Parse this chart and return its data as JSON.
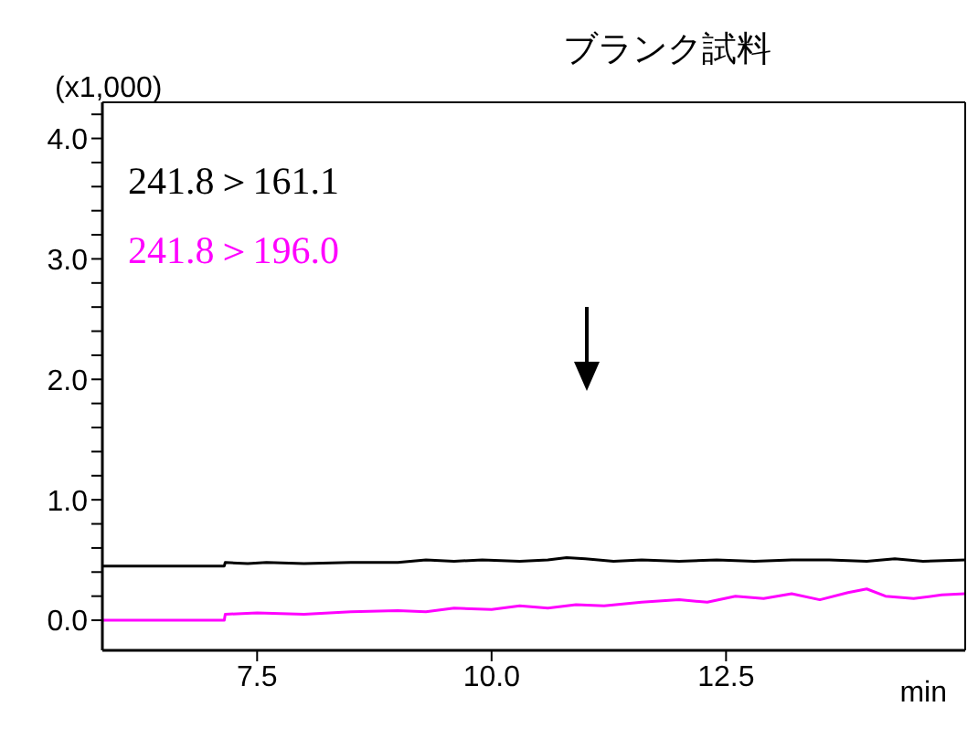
{
  "chart_data": {
    "type": "line",
    "title": "ブランク試料",
    "xlabel": "min",
    "ylabel": "(x1,000)",
    "xlim": [
      5.85,
      15.05
    ],
    "xticks": [
      7.5,
      {
        "value": 10,
        "label": "10.0"
      },
      12.5
    ],
    "ylim": [
      -0.25,
      4.3
    ],
    "yticks": [
      {
        "value": 0,
        "label": "0.0"
      },
      {
        "value": 0.2,
        "label": null
      },
      {
        "value": 0.4,
        "label": null
      },
      {
        "value": 0.6,
        "label": null
      },
      {
        "value": 0.8,
        "label": null
      },
      {
        "value": 1,
        "label": "1.0"
      },
      {
        "value": 1.2,
        "label": null
      },
      {
        "value": 1.4,
        "label": null
      },
      {
        "value": 1.6,
        "label": null
      },
      {
        "value": 1.8,
        "label": null
      },
      {
        "value": 2,
        "label": "2.0"
      },
      {
        "value": 2.2,
        "label": null
      },
      {
        "value": 2.4,
        "label": null
      },
      {
        "value": 2.6,
        "label": null
      },
      {
        "value": 2.8,
        "label": null
      },
      {
        "value": 3,
        "label": "3.0"
      },
      {
        "value": 3.2,
        "label": null
      },
      {
        "value": 3.4,
        "label": null
      },
      {
        "value": 3.6,
        "label": null
      },
      {
        "value": 3.8,
        "label": null
      },
      {
        "value": 4,
        "label": "4.0"
      },
      {
        "value": 4.2,
        "label": null
      }
    ],
    "grid": false,
    "legend": "top left",
    "marker": "none",
    "line_style": "solid",
    "series": [
      {
        "name": "241.8＞161.1",
        "color": "#000000",
        "x": [
          5.85,
          7.15,
          7.16,
          7.4,
          7.6,
          8.0,
          8.5,
          9.0,
          9.3,
          9.6,
          9.9,
          10.3,
          10.6,
          10.8,
          11.0,
          11.3,
          11.6,
          12.0,
          12.4,
          12.8,
          13.2,
          13.6,
          14.0,
          14.3,
          14.6,
          15.05
        ],
        "values": [
          0.45,
          0.45,
          0.48,
          0.47,
          0.48,
          0.47,
          0.48,
          0.48,
          0.5,
          0.49,
          0.5,
          0.49,
          0.5,
          0.52,
          0.51,
          0.49,
          0.5,
          0.49,
          0.5,
          0.49,
          0.5,
          0.5,
          0.49,
          0.51,
          0.49,
          0.5
        ]
      },
      {
        "name": "241.8＞196.0",
        "color": "#ff00ff",
        "x": [
          5.85,
          7.15,
          7.16,
          7.5,
          8.0,
          8.5,
          9.0,
          9.3,
          9.6,
          10.0,
          10.3,
          10.6,
          10.9,
          11.2,
          11.6,
          12.0,
          12.3,
          12.6,
          12.9,
          13.2,
          13.5,
          13.8,
          14.0,
          14.2,
          14.5,
          14.8,
          15.05
        ],
        "values": [
          0,
          0,
          0.05,
          0.06,
          0.05,
          0.07,
          0.08,
          0.07,
          0.1,
          0.09,
          0.12,
          0.1,
          0.13,
          0.12,
          0.15,
          0.17,
          0.15,
          0.2,
          0.18,
          0.22,
          0.17,
          0.23,
          0.26,
          0.2,
          0.18,
          0.21,
          0.22
        ]
      }
    ]
  }
}
